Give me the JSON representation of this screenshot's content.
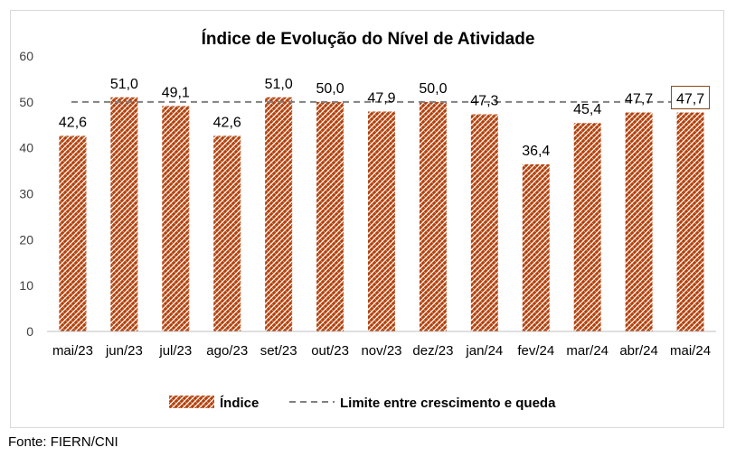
{
  "chart_data": {
    "type": "bar",
    "title": "Índice de Evolução do Nível de Atividade",
    "categories": [
      "mai/23",
      "jun/23",
      "jul/23",
      "ago/23",
      "set/23",
      "out/23",
      "nov/23",
      "dez/23",
      "jan/24",
      "fev/24",
      "mar/24",
      "abr/24",
      "mai/24"
    ],
    "series": [
      {
        "name": "Índice",
        "values": [
          42.6,
          51.0,
          49.1,
          42.6,
          51.0,
          50.0,
          47.9,
          50.0,
          47.3,
          36.4,
          45.4,
          47.7,
          47.7
        ],
        "labels": [
          "42,6",
          "51,0",
          "49,1",
          "42,6",
          "51,0",
          "50,0",
          "47,9",
          "50,0",
          "47,3",
          "36,4",
          "45,4",
          "47,7",
          "47,7"
        ],
        "color": "#b5410b"
      }
    ],
    "reference_line": {
      "name": "Limite entre crescimento e queda",
      "value": 50,
      "color": "#808080"
    },
    "yticks": [
      "0",
      "10",
      "20",
      "30",
      "40",
      "50",
      "60"
    ],
    "ylim": [
      0,
      60
    ],
    "grid": false,
    "legend_position": "bottom",
    "highlighted_label_index": 12,
    "highlight_color": "#8b4513"
  },
  "source": "Fonte: FIERN/CNI"
}
